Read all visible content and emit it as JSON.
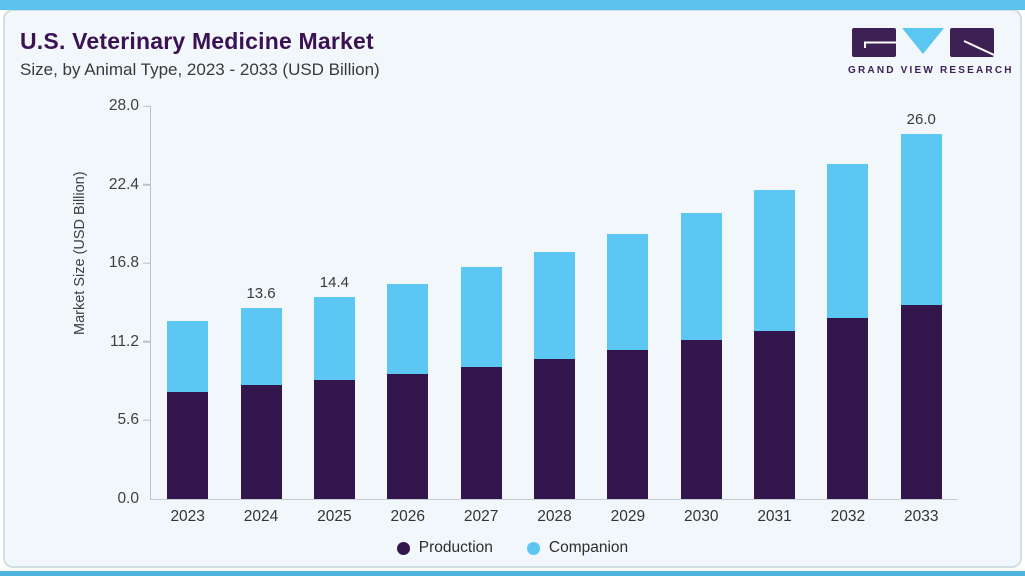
{
  "header": {
    "title": "U.S. Veterinary Medicine Market",
    "subtitle": "Size, by Animal Type, 2023 - 2033 (USD Billion)",
    "logo_text": "GRAND VIEW RESEARCH"
  },
  "colors": {
    "production": "#32164c",
    "companion": "#5cc7f2",
    "title_purple": "#3a1253",
    "logo_purple": "#3d2155",
    "stripe_blue": "#5bc3ec"
  },
  "chart_data": {
    "type": "bar",
    "stacked": true,
    "title": "U.S. Veterinary Medicine Market Size, by Animal Type, 2023 - 2033 (USD Billion)",
    "categories": [
      "2023",
      "2024",
      "2025",
      "2026",
      "2027",
      "2028",
      "2029",
      "2030",
      "2031",
      "2032",
      "2033"
    ],
    "series": [
      {
        "name": "Production",
        "color": "#32164c",
        "values": [
          7.6,
          8.1,
          8.5,
          8.9,
          9.4,
          10.0,
          10.6,
          11.3,
          12.0,
          12.9,
          13.8
        ]
      },
      {
        "name": "Companion",
        "color": "#5cc7f2",
        "values": [
          5.1,
          5.5,
          5.9,
          6.4,
          7.1,
          7.6,
          8.3,
          9.1,
          10.0,
          11.0,
          12.2
        ]
      }
    ],
    "totals": [
      12.7,
      13.6,
      14.4,
      15.3,
      16.5,
      17.6,
      18.9,
      20.4,
      22.0,
      23.9,
      26.0
    ],
    "data_labels": [
      null,
      "13.6",
      "14.4",
      null,
      null,
      null,
      null,
      null,
      null,
      null,
      "26.0"
    ],
    "xlabel": "",
    "ylabel": "Market Size (USD Billion)",
    "yticks": [
      0.0,
      5.6,
      11.2,
      16.8,
      22.4,
      28.0
    ],
    "ytick_labels": [
      "0.0",
      "5.6",
      "11.2",
      "16.8",
      "22.4",
      "28.0"
    ],
    "ylim": [
      0,
      28
    ],
    "grid": false,
    "legend_position": "bottom"
  }
}
